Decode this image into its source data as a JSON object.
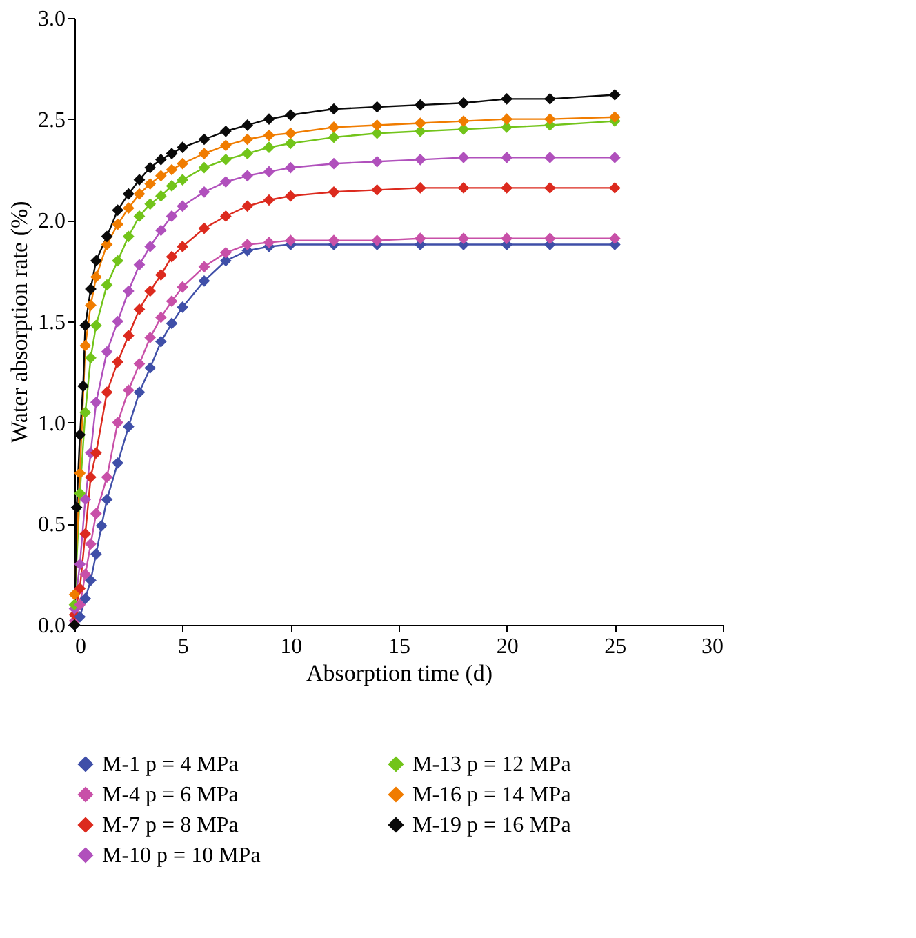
{
  "chart_data": {
    "type": "line",
    "xlabel": "Absorption time (d)",
    "ylabel": "Water absorption rate (%)",
    "xlim": [
      0,
      30
    ],
    "xticks": [
      0,
      5,
      10,
      15,
      20,
      25,
      30
    ],
    "ylim": [
      0,
      3
    ],
    "yticks": [
      {
        "value": 0,
        "label": "0.0"
      },
      {
        "value": 0.5,
        "label": "0.5"
      },
      {
        "value": 1,
        "label": "1.0"
      },
      {
        "value": 1.5,
        "label": "1.5"
      },
      {
        "value": 2,
        "label": "2.0"
      },
      {
        "value": 2.5,
        "label": "2.5"
      },
      {
        "value": 3,
        "label": "3.0"
      }
    ],
    "grid": false,
    "legend": "bottom",
    "marker": "diamond",
    "line_style": "solid",
    "series": [
      {
        "name": "M-1 p = 4 MPa",
        "color": "#3f4fa8",
        "x": [
          0,
          0.25,
          0.5,
          0.75,
          1,
          1.25,
          1.5,
          2,
          2.5,
          3,
          3.5,
          4,
          4.5,
          5,
          6,
          7,
          8,
          9,
          10,
          12,
          14,
          16,
          18,
          20,
          22,
          25
        ],
        "values": [
          0,
          0.04,
          0.13,
          0.22,
          0.35,
          0.49,
          0.62,
          0.8,
          0.98,
          1.15,
          1.27,
          1.4,
          1.49,
          1.57,
          1.7,
          1.8,
          1.85,
          1.87,
          1.88,
          1.88,
          1.88,
          1.88,
          1.88,
          1.88,
          1.88,
          1.88
        ]
      },
      {
        "name": "M-4 p = 6 MPa",
        "color": "#c850a8",
        "x": [
          0,
          0.25,
          0.5,
          0.75,
          1,
          1.5,
          2,
          2.5,
          3,
          3.5,
          4,
          4.5,
          5,
          6,
          7,
          8,
          9,
          10,
          12,
          14,
          16,
          18,
          20,
          22,
          25
        ],
        "values": [
          0.02,
          0.1,
          0.25,
          0.4,
          0.55,
          0.73,
          1.0,
          1.16,
          1.29,
          1.42,
          1.52,
          1.6,
          1.67,
          1.77,
          1.84,
          1.88,
          1.89,
          1.9,
          1.9,
          1.9,
          1.91,
          1.91,
          1.91,
          1.91,
          1.91
        ]
      },
      {
        "name": "M-7 p = 8 MPa",
        "color": "#dc2a1e",
        "x": [
          0,
          0.25,
          0.5,
          0.75,
          1,
          1.5,
          2,
          2.5,
          3,
          3.5,
          4,
          4.5,
          5,
          6,
          7,
          8,
          9,
          10,
          12,
          14,
          16,
          18,
          20,
          22,
          25
        ],
        "values": [
          0.05,
          0.18,
          0.45,
          0.73,
          0.85,
          1.15,
          1.3,
          1.43,
          1.56,
          1.65,
          1.73,
          1.82,
          1.87,
          1.96,
          2.02,
          2.07,
          2.1,
          2.12,
          2.14,
          2.15,
          2.16,
          2.16,
          2.16,
          2.16,
          2.16
        ]
      },
      {
        "name": "M-10 p = 10 MPa",
        "color": "#b050bc",
        "x": [
          0,
          0.25,
          0.5,
          0.75,
          1,
          1.5,
          2,
          2.5,
          3,
          3.5,
          4,
          4.5,
          5,
          6,
          7,
          8,
          9,
          10,
          12,
          14,
          16,
          18,
          20,
          22,
          25
        ],
        "values": [
          0.08,
          0.3,
          0.62,
          0.85,
          1.1,
          1.35,
          1.5,
          1.65,
          1.78,
          1.87,
          1.95,
          2.02,
          2.07,
          2.14,
          2.19,
          2.22,
          2.24,
          2.26,
          2.28,
          2.29,
          2.3,
          2.31,
          2.31,
          2.31,
          2.31
        ]
      },
      {
        "name": "M-13 p = 12 MPa",
        "color": "#72c41a",
        "x": [
          0,
          0.25,
          0.5,
          0.75,
          1,
          1.5,
          2,
          2.5,
          3,
          3.5,
          4,
          4.5,
          5,
          6,
          7,
          8,
          9,
          10,
          12,
          14,
          16,
          18,
          20,
          22,
          25
        ],
        "values": [
          0.1,
          0.65,
          1.05,
          1.32,
          1.48,
          1.68,
          1.8,
          1.92,
          2.02,
          2.08,
          2.12,
          2.17,
          2.2,
          2.26,
          2.3,
          2.33,
          2.36,
          2.38,
          2.41,
          2.43,
          2.44,
          2.45,
          2.46,
          2.47,
          2.49
        ]
      },
      {
        "name": "M-16 p = 14 MPa",
        "color": "#f07c00",
        "x": [
          0,
          0.25,
          0.5,
          0.75,
          1,
          1.5,
          2,
          2.5,
          3,
          3.5,
          4,
          4.5,
          5,
          6,
          7,
          8,
          9,
          10,
          12,
          14,
          16,
          18,
          20,
          22,
          25
        ],
        "values": [
          0.15,
          0.75,
          1.38,
          1.58,
          1.72,
          1.88,
          1.98,
          2.06,
          2.13,
          2.18,
          2.22,
          2.25,
          2.28,
          2.33,
          2.37,
          2.4,
          2.42,
          2.43,
          2.46,
          2.47,
          2.48,
          2.49,
          2.5,
          2.5,
          2.51
        ]
      },
      {
        "name": "M-19 p = 16 MPa",
        "color": "#0a0a0a",
        "x": [
          0,
          0.1,
          0.25,
          0.4,
          0.5,
          0.75,
          1,
          1.5,
          2,
          2.5,
          3,
          3.5,
          4,
          4.5,
          5,
          6,
          7,
          8,
          9,
          10,
          12,
          14,
          16,
          18,
          20,
          22,
          25
        ],
        "values": [
          0,
          0.58,
          0.94,
          1.18,
          1.48,
          1.66,
          1.8,
          1.92,
          2.05,
          2.13,
          2.2,
          2.26,
          2.3,
          2.33,
          2.36,
          2.4,
          2.44,
          2.47,
          2.5,
          2.52,
          2.55,
          2.56,
          2.57,
          2.58,
          2.6,
          2.6,
          2.62
        ]
      }
    ]
  }
}
